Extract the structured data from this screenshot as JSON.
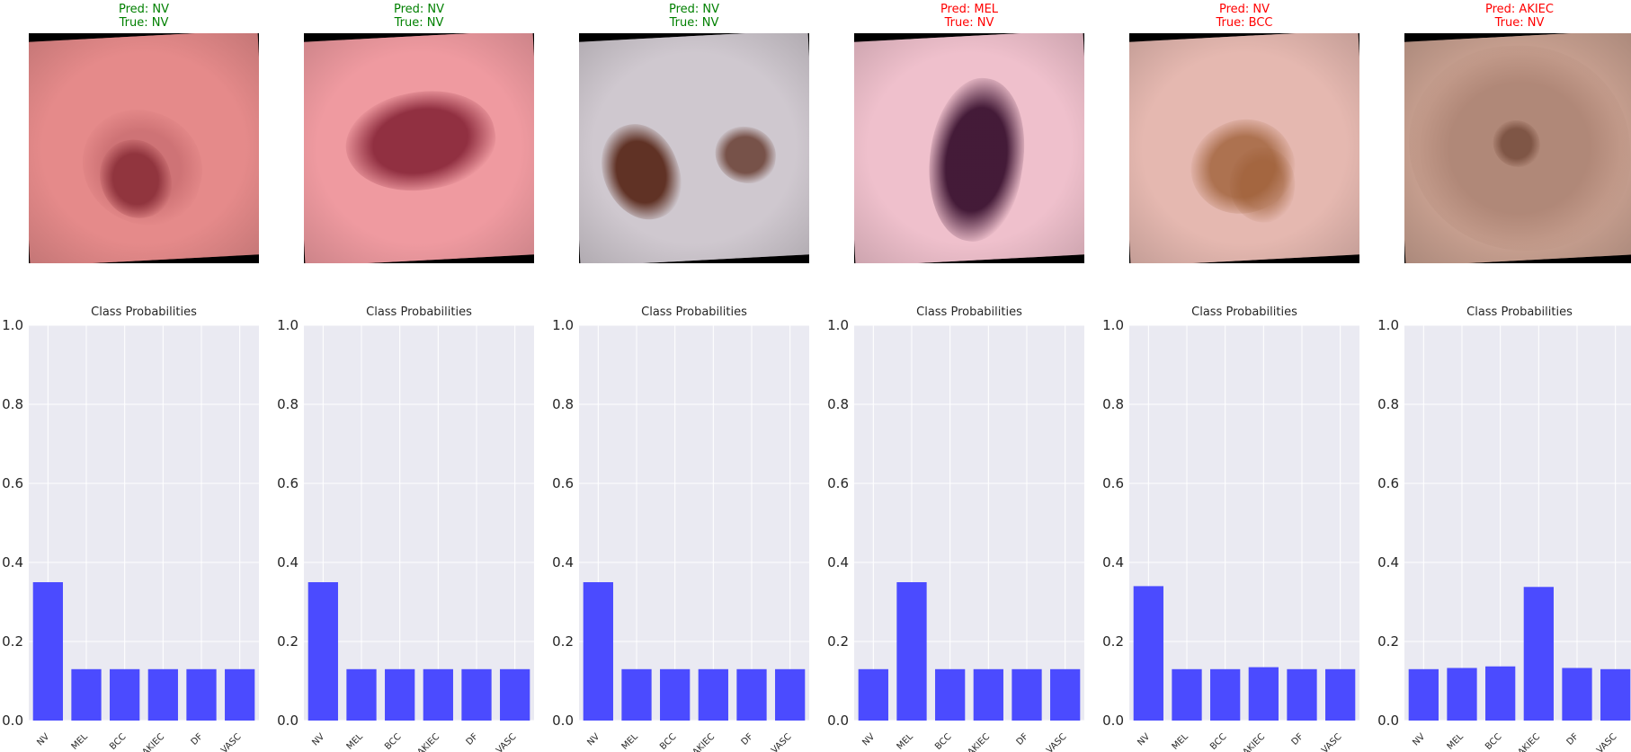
{
  "colors": {
    "correct": "#008000",
    "incorrect": "#ff0000",
    "bar": "#4545ff",
    "plot_bg": "#eaeaf2",
    "grid": "#ffffff"
  },
  "panels": [
    {
      "pred_text": "Pred: NV",
      "true_text": "True: NV",
      "correct": true,
      "image": {
        "skin_color": "#e58a8a",
        "lesion_color": "#8a2e38",
        "rotation_deg": -3,
        "description_icon": "skin-lesion-image"
      },
      "chart_title": "Class Probabilities"
    },
    {
      "pred_text": "Pred: NV",
      "true_text": "True: NV",
      "correct": true,
      "image": {
        "skin_color": "#ef9aa0",
        "lesion_color": "#8c2a3c",
        "rotation_deg": -3,
        "description_icon": "skin-lesion-image"
      },
      "chart_title": "Class Probabilities"
    },
    {
      "pred_text": "Pred: NV",
      "true_text": "True: NV",
      "correct": true,
      "image": {
        "skin_color": "#cfc8cf",
        "lesion_color": "#5a2a1c",
        "rotation_deg": -3,
        "description_icon": "skin-lesion-image"
      },
      "chart_title": "Class Probabilities"
    },
    {
      "pred_text": "Pred: MEL",
      "true_text": "True: NV",
      "correct": false,
      "image": {
        "skin_color": "#efc0cc",
        "lesion_color": "#3b1230",
        "rotation_deg": -3,
        "description_icon": "skin-lesion-image"
      },
      "chart_title": "Class Probabilities"
    },
    {
      "pred_text": "Pred: NV",
      "true_text": "True: BCC",
      "correct": false,
      "image": {
        "skin_color": "#e5b8b0",
        "lesion_color": "#9a5a30",
        "rotation_deg": -3,
        "description_icon": "skin-lesion-image"
      },
      "chart_title": "Class Probabilities"
    },
    {
      "pred_text": "Pred: AKIEC",
      "true_text": "True: NV",
      "correct": false,
      "image": {
        "skin_color": "#c8a090",
        "lesion_color": "#6a4030",
        "rotation_deg": -3,
        "description_icon": "skin-lesion-image"
      },
      "chart_title": "Class Probabilities"
    }
  ],
  "chart_data": [
    {
      "type": "bar",
      "title": "Class Probabilities",
      "categories": [
        "NV",
        "MEL",
        "BCC",
        "AKIEC",
        "DF",
        "VASC"
      ],
      "values": [
        0.35,
        0.13,
        0.13,
        0.13,
        0.13,
        0.13
      ],
      "ylim": [
        0,
        1.0
      ],
      "yticks": [
        "0.0",
        "0.2",
        "0.4",
        "0.6",
        "0.8",
        "1.0"
      ],
      "grid": true
    },
    {
      "type": "bar",
      "title": "Class Probabilities",
      "categories": [
        "NV",
        "MEL",
        "BCC",
        "AKIEC",
        "DF",
        "VASC"
      ],
      "values": [
        0.35,
        0.13,
        0.13,
        0.13,
        0.13,
        0.13
      ],
      "ylim": [
        0,
        1.0
      ],
      "yticks": [
        "0.0",
        "0.2",
        "0.4",
        "0.6",
        "0.8",
        "1.0"
      ],
      "grid": true
    },
    {
      "type": "bar",
      "title": "Class Probabilities",
      "categories": [
        "NV",
        "MEL",
        "BCC",
        "AKIEC",
        "DF",
        "VASC"
      ],
      "values": [
        0.35,
        0.13,
        0.13,
        0.13,
        0.13,
        0.13
      ],
      "ylim": [
        0,
        1.0
      ],
      "yticks": [
        "0.0",
        "0.2",
        "0.4",
        "0.6",
        "0.8",
        "1.0"
      ],
      "grid": true
    },
    {
      "type": "bar",
      "title": "Class Probabilities",
      "categories": [
        "NV",
        "MEL",
        "BCC",
        "AKIEC",
        "DF",
        "VASC"
      ],
      "values": [
        0.13,
        0.35,
        0.13,
        0.13,
        0.13,
        0.13
      ],
      "ylim": [
        0,
        1.0
      ],
      "yticks": [
        "0.0",
        "0.2",
        "0.4",
        "0.6",
        "0.8",
        "1.0"
      ],
      "grid": true
    },
    {
      "type": "bar",
      "title": "Class Probabilities",
      "categories": [
        "NV",
        "MEL",
        "BCC",
        "AKIEC",
        "DF",
        "VASC"
      ],
      "values": [
        0.34,
        0.13,
        0.13,
        0.135,
        0.13,
        0.13
      ],
      "ylim": [
        0,
        1.0
      ],
      "yticks": [
        "0.0",
        "0.2",
        "0.4",
        "0.6",
        "0.8",
        "1.0"
      ],
      "grid": true
    },
    {
      "type": "bar",
      "title": "Class Probabilities",
      "categories": [
        "NV",
        "MEL",
        "BCC",
        "AKIEC",
        "DF",
        "VASC"
      ],
      "values": [
        0.13,
        0.133,
        0.137,
        0.338,
        0.133,
        0.13
      ],
      "ylim": [
        0,
        1.0
      ],
      "yticks": [
        "0.0",
        "0.2",
        "0.4",
        "0.6",
        "0.8",
        "1.0"
      ],
      "grid": true
    }
  ]
}
